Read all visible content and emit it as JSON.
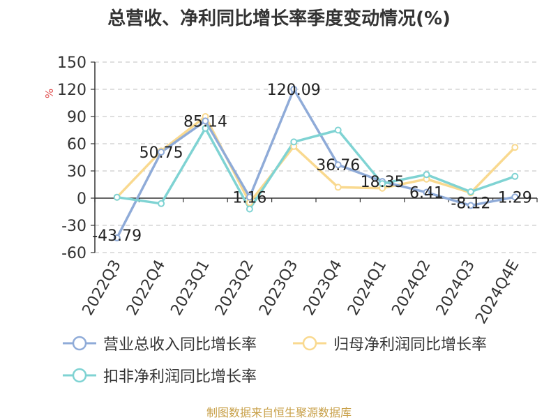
{
  "title": "总营收、净利同比增长率季度变动情况(%)",
  "source": "制图数据来自恒生聚源数据库",
  "colors": {
    "revenue": "#8fabd8",
    "net_profit": "#f9d98f",
    "deducted_profit": "#7fd3d3",
    "axis": "#333333",
    "grid": "#cccccc",
    "unit_mark": "#e05050"
  },
  "chart_data": {
    "type": "line",
    "title": "总营收、净利同比增长率季度变动情况(%)",
    "ylabel": "%",
    "ylim": [
      -60,
      150
    ],
    "yticks": [
      150,
      120,
      90,
      60,
      30,
      0,
      -30,
      -60
    ],
    "grid": true,
    "legend_position": "bottom",
    "categories": [
      "2022Q3",
      "2022Q4",
      "2023Q1",
      "2023Q2",
      "2023Q3",
      "2023Q4",
      "2024Q1",
      "2024Q2",
      "2024Q3",
      "2024Q4E"
    ],
    "series": [
      {
        "name": "营业总收入同比增长率",
        "color_key": "revenue",
        "values": [
          -43.79,
          50.75,
          85.14,
          1.16,
          120.09,
          36.76,
          18.35,
          6.41,
          -8.12,
          1.29
        ]
      },
      {
        "name": "归母净利润同比增长率",
        "color_key": "net_profit",
        "values": [
          1,
          52,
          90,
          -5,
          57,
          12,
          11,
          21,
          6,
          56
        ]
      },
      {
        "name": "扣非净利润同比增长率",
        "color_key": "deducted_profit",
        "values": [
          1,
          -6,
          77,
          -12,
          62,
          75,
          16,
          26,
          7,
          24
        ]
      }
    ],
    "data_labels": [
      "-43.79",
      "50.75",
      "85.14",
      "1.16",
      "120.09",
      "36.76",
      "18.35",
      "6.41",
      "-8.12",
      "1.29"
    ]
  }
}
